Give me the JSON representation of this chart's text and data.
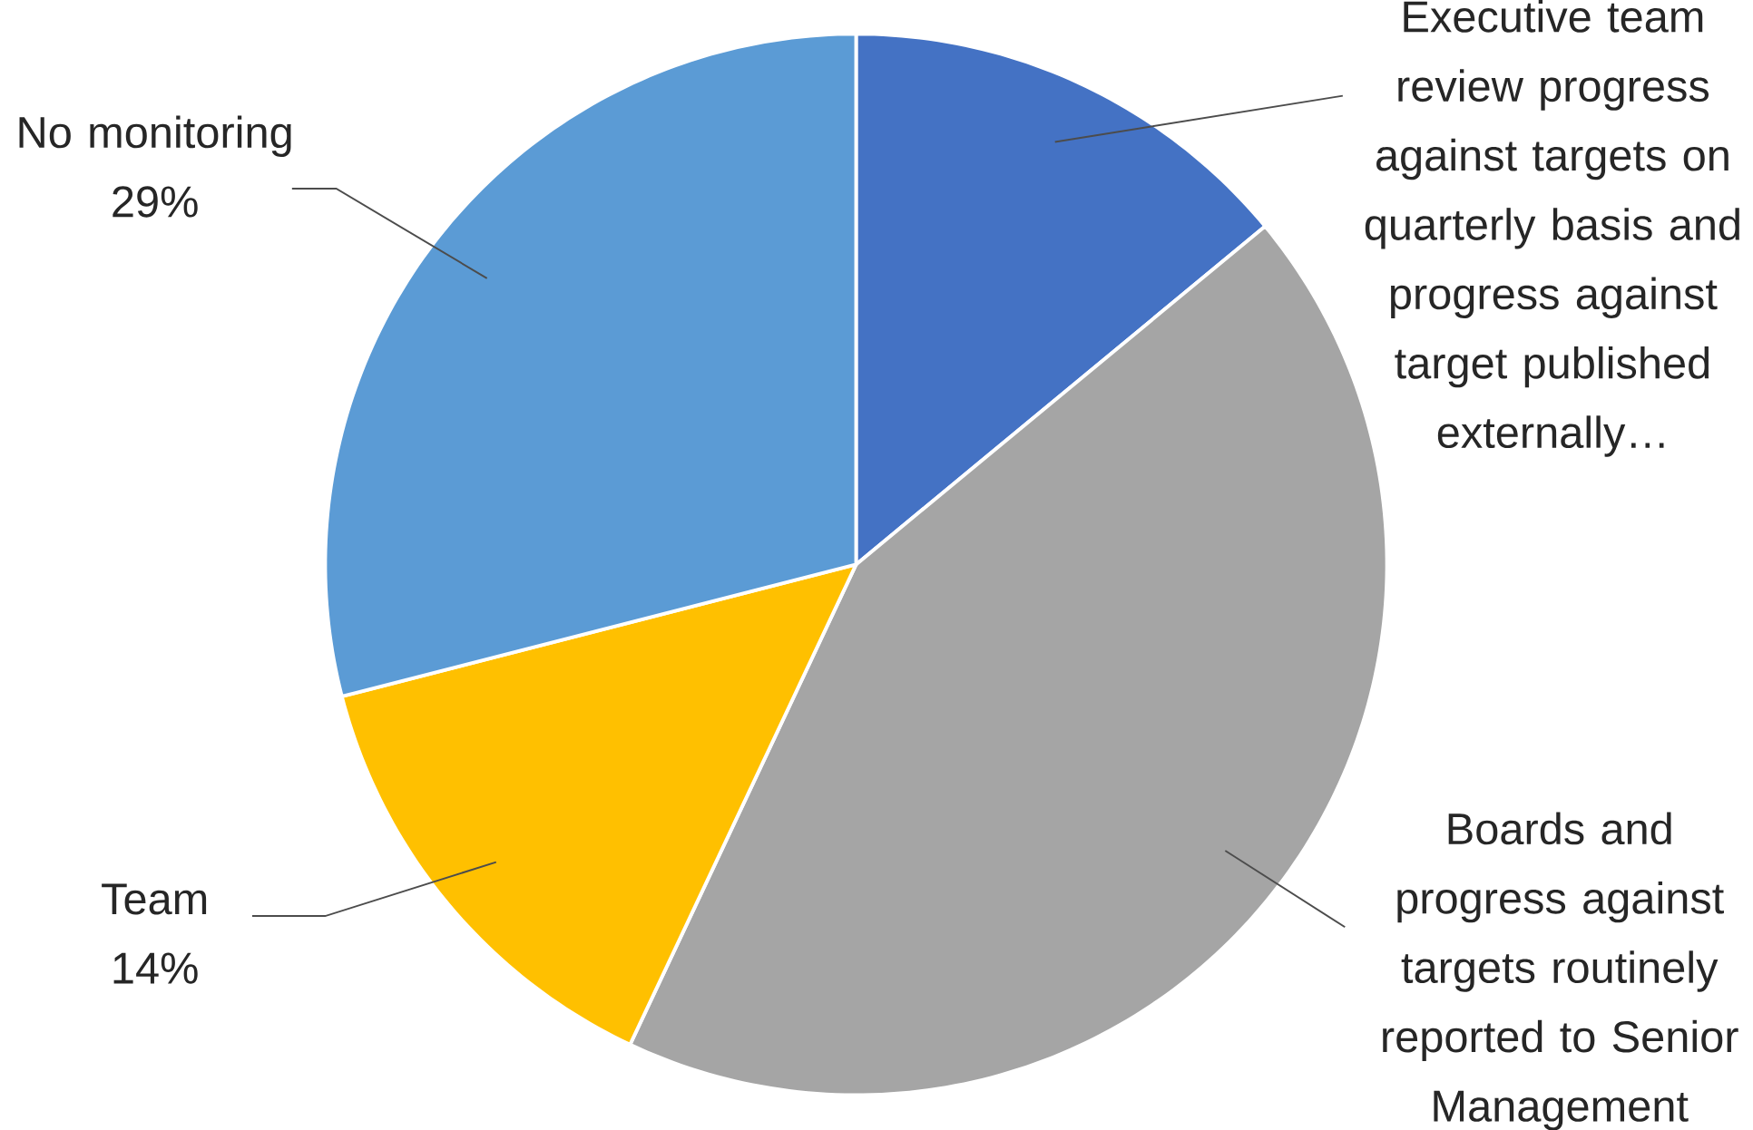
{
  "chart_data": {
    "type": "pie",
    "categories": [
      "Executive team review progress against targets on quarterly basis and progress against target published externally…",
      "Boards and progress against targets routinely reported to Senior Management",
      "Team",
      "No monitoring"
    ],
    "values": [
      14,
      43,
      14,
      29
    ],
    "colors": [
      "#4472c4",
      "#a5a5a5",
      "#ffc000",
      "#5b9bd5"
    ],
    "value_labels": [
      null,
      null,
      "14%",
      "29%"
    ]
  }
}
